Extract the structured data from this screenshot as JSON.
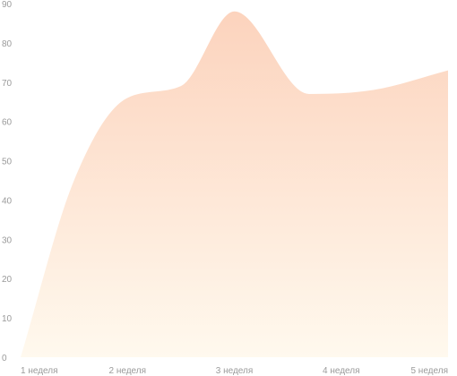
{
  "chart_data": {
    "type": "area",
    "title": "",
    "xlabel": "",
    "ylabel": "",
    "grid": false,
    "legend": "none",
    "categories": [
      "1 неделя",
      "2 неделя",
      "3 неделя",
      "4 неделя",
      "5 неделя"
    ],
    "y_ticks": [
      "0",
      "10",
      "20",
      "30",
      "40",
      "50",
      "60",
      "70",
      "80",
      "90"
    ],
    "ylim": [
      0,
      90
    ],
    "series": [
      {
        "x": [
          0,
          0.5,
          1,
          1.5,
          2,
          2.7,
          3.3,
          4.0
        ],
        "values": [
          0,
          45,
          66,
          69,
          88,
          67,
          68,
          73
        ]
      }
    ],
    "colors": {
      "fill_top": "#fcd3bd",
      "fill_bottom": "#fff9ee",
      "tick_text": "#9a9a9a"
    }
  }
}
